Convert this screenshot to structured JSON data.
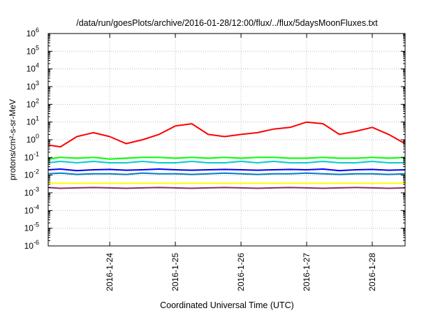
{
  "chart_data": {
    "type": "line",
    "title": "/data/run/goesPlots/archive/2016-01-28/12:00/flux/../flux/5daysMoonFluxes.txt",
    "xlabel": "Coordinated Universal Time (UTC)",
    "ylabel": "protons/cm²-s-sr-MeV",
    "y_scale": "log",
    "ylim": [
      1e-06,
      1000000.0
    ],
    "xlim": [
      "2016-01-23 01:30",
      "2016-01-28 12:00"
    ],
    "grid": true,
    "legend": "none",
    "x_ticks": [
      "2016-1-24",
      "2016-1-25",
      "2016-1-26",
      "2016-1-27",
      "2016-1-28"
    ],
    "y_ticks": [
      {
        "base": "10",
        "exp": "6"
      },
      {
        "base": "10",
        "exp": "5"
      },
      {
        "base": "10",
        "exp": "4"
      },
      {
        "base": "10",
        "exp": "3"
      },
      {
        "base": "10",
        "exp": "2"
      },
      {
        "base": "10",
        "exp": "1"
      },
      {
        "base": "10",
        "exp": "0"
      },
      {
        "base": "10",
        "exp": "-1"
      },
      {
        "base": "10",
        "exp": "-2"
      },
      {
        "base": "10",
        "exp": "-3"
      },
      {
        "base": "10",
        "exp": "-4"
      },
      {
        "base": "10",
        "exp": "-5"
      },
      {
        "base": "10",
        "exp": "-6"
      }
    ],
    "x_dates": [
      "2016-01-23 01:30",
      "2016-01-23 06:00",
      "2016-01-23 12:00",
      "2016-01-23 18:00",
      "2016-01-24 00:00",
      "2016-01-24 06:00",
      "2016-01-24 12:00",
      "2016-01-24 18:00",
      "2016-01-25 00:00",
      "2016-01-25 06:00",
      "2016-01-25 12:00",
      "2016-01-25 18:00",
      "2016-01-26 00:00",
      "2016-01-26 06:00",
      "2016-01-26 12:00",
      "2016-01-26 18:00",
      "2016-01-27 00:00",
      "2016-01-27 06:00",
      "2016-01-27 12:00",
      "2016-01-27 18:00",
      "2016-01-28 00:00",
      "2016-01-28 06:00",
      "2016-01-28 12:00"
    ],
    "series": [
      {
        "color": "#ff0000",
        "values": [
          0.5,
          0.4,
          1.5,
          2.5,
          1.5,
          0.6,
          1.0,
          2.0,
          6.0,
          8.0,
          2.0,
          1.5,
          2.0,
          2.5,
          4.0,
          5.0,
          10.0,
          8.0,
          2.0,
          3.0,
          5.0,
          2.0,
          0.6
        ]
      },
      {
        "color": "#00ff00",
        "values": [
          0.08,
          0.1,
          0.09,
          0.1,
          0.08,
          0.09,
          0.1,
          0.1,
          0.09,
          0.1,
          0.09,
          0.1,
          0.09,
          0.1,
          0.1,
          0.09,
          0.09,
          0.1,
          0.09,
          0.09,
          0.1,
          0.09,
          0.1
        ]
      },
      {
        "color": "#00cccc",
        "values": [
          0.05,
          0.06,
          0.05,
          0.06,
          0.05,
          0.05,
          0.06,
          0.05,
          0.05,
          0.06,
          0.05,
          0.05,
          0.06,
          0.05,
          0.06,
          0.05,
          0.05,
          0.06,
          0.05,
          0.05,
          0.06,
          0.05,
          0.05
        ]
      },
      {
        "color": "#0000ff",
        "values": [
          0.02,
          0.022,
          0.018,
          0.02,
          0.021,
          0.019,
          0.02,
          0.022,
          0.02,
          0.019,
          0.02,
          0.021,
          0.02,
          0.019,
          0.02,
          0.021,
          0.02,
          0.022,
          0.018,
          0.02,
          0.021,
          0.019,
          0.02
        ]
      },
      {
        "color": "#0080c0",
        "values": [
          0.012,
          0.013,
          0.011,
          0.012,
          0.012,
          0.011,
          0.013,
          0.012,
          0.012,
          0.011,
          0.012,
          0.013,
          0.012,
          0.011,
          0.012,
          0.012,
          0.013,
          0.012,
          0.011,
          0.012,
          0.012,
          0.011,
          0.012
        ]
      },
      {
        "color": "#ffff00",
        "values": [
          0.0035,
          0.0035,
          0.0034,
          0.0035,
          0.0035,
          0.0034,
          0.0035,
          0.0035,
          0.0034,
          0.0035,
          0.0035,
          0.0034,
          0.0035,
          0.0035,
          0.0034,
          0.0035,
          0.0035,
          0.0034,
          0.0035,
          0.0035,
          0.0034,
          0.0035,
          0.0035
        ]
      },
      {
        "color": "#8b2a6b",
        "values": [
          0.002,
          0.0018,
          0.0019,
          0.002,
          0.0019,
          0.0018,
          0.0019,
          0.002,
          0.0019,
          0.0018,
          0.0019,
          0.002,
          0.0019,
          0.0018,
          0.0019,
          0.002,
          0.0019,
          0.0018,
          0.0019,
          0.002,
          0.0019,
          0.0018,
          0.0019
        ]
      }
    ]
  }
}
